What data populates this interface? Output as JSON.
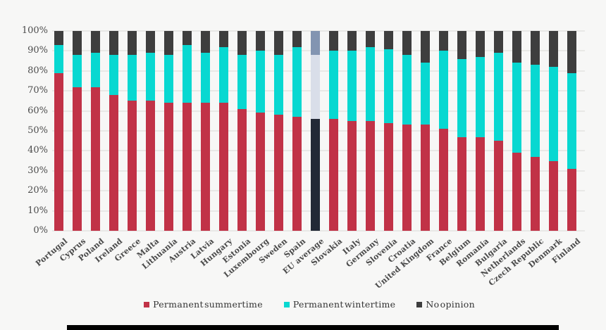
{
  "page": {
    "background_color": "#f7f7f6"
  },
  "chart_data": {
    "type": "bar",
    "subtype": "stacked-100-percent",
    "title": "",
    "xlabel": "",
    "ylabel": "",
    "ylim": [
      0,
      100
    ],
    "grid": true,
    "legend_position": "bottom-center",
    "y_ticks": [
      "100%",
      "90%",
      "80%",
      "70%",
      "60%",
      "50%",
      "40%",
      "30%",
      "20%",
      "10%",
      "0%"
    ],
    "y_tick_values": [
      100,
      90,
      80,
      70,
      60,
      50,
      40,
      30,
      20,
      10,
      0
    ],
    "categories": [
      "Portugal",
      "Cyprus",
      "Poland",
      "Ireland",
      "Greece",
      "Malta",
      "Lithuania",
      "Austria",
      "Latvia",
      "Hungary",
      "Estonia",
      "Luxembourg",
      "Sweden",
      "Spain",
      "EU average",
      "Slovakia",
      "Italy",
      "Germany",
      "Slovenia",
      "Croatia",
      "United Kingdom",
      "France",
      "Belgium",
      "Romania",
      "Bulgaria",
      "Netherlands",
      "Czech Republic",
      "Denmark",
      "Finland"
    ],
    "series": [
      {
        "name": "Permanent summertime",
        "color": "#c13247",
        "values": [
          79,
          72,
          72,
          68,
          65,
          65,
          64,
          64,
          64,
          64,
          61,
          59,
          58,
          57,
          56,
          56,
          55,
          55,
          54,
          53,
          53,
          51,
          47,
          47,
          45,
          39,
          37,
          35,
          31
        ]
      },
      {
        "name": "Permanent wintertime",
        "color": "#08d8d1",
        "values": [
          14,
          16,
          17,
          20,
          23,
          24,
          24,
          29,
          25,
          28,
          27,
          31,
          30,
          35,
          32,
          34,
          35,
          37,
          37,
          35,
          31,
          39,
          39,
          40,
          44,
          45,
          46,
          47,
          48
        ]
      },
      {
        "name": "No opinion",
        "color": "#3e3e3e",
        "values": [
          7,
          12,
          11,
          12,
          12,
          11,
          12,
          7,
          11,
          8,
          12,
          10,
          12,
          8,
          12,
          10,
          10,
          8,
          9,
          12,
          16,
          10,
          14,
          13,
          11,
          16,
          17,
          18,
          21
        ]
      }
    ],
    "highlighted_category": {
      "name": "EU average",
      "series_colors": [
        "#222936",
        "#d9dee9",
        "#8294b1"
      ]
    },
    "unit": "%"
  },
  "legend": {
    "items": [
      {
        "label": "Permanent summertime",
        "color": "#c13247"
      },
      {
        "label": "Permanent wintertime",
        "color": "#08d8d1"
      },
      {
        "label": "No opinion",
        "color": "#3e3e3e"
      }
    ]
  }
}
